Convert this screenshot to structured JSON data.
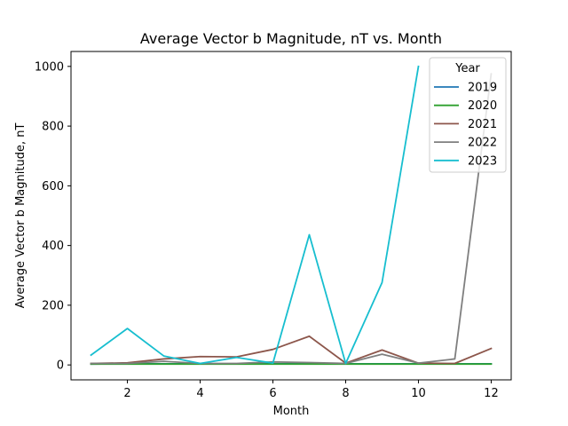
{
  "chart_data": {
    "type": "line",
    "title": "Average Vector b Magnitude, nT vs. Month",
    "xlabel": "Month",
    "ylabel": "Average Vector b Magnitude, nT",
    "xlim": [
      0.45,
      12.55
    ],
    "ylim": [
      -50,
      1050
    ],
    "xticks": [
      2,
      4,
      6,
      8,
      10,
      12
    ],
    "yticks": [
      0,
      200,
      400,
      600,
      800,
      1000
    ],
    "grid": false,
    "legend": {
      "title": "Year",
      "position": "top-right"
    },
    "series": [
      {
        "name": "2019",
        "color": "#1f77b4",
        "x": [
          1,
          2,
          3,
          4,
          5,
          6,
          7,
          8,
          9,
          10,
          11,
          12
        ],
        "y": [
          3,
          4,
          4,
          4,
          4,
          4,
          4,
          4,
          4,
          4,
          4,
          4
        ]
      },
      {
        "name": "2020",
        "color": "#2ca02c",
        "x": [
          1,
          2,
          3,
          4,
          5,
          6,
          7,
          8,
          9,
          10,
          11,
          12
        ],
        "y": [
          3,
          3,
          3,
          3,
          3,
          3,
          3,
          3,
          3,
          3,
          3,
          3
        ]
      },
      {
        "name": "2021",
        "color": "#8c564b",
        "x": [
          1,
          2,
          3,
          4,
          5,
          6,
          7,
          8,
          9,
          10,
          11,
          12
        ],
        "y": [
          5,
          7,
          20,
          28,
          27,
          52,
          96,
          6,
          50,
          6,
          5,
          55
        ]
      },
      {
        "name": "2022",
        "color": "#7f7f7f",
        "x": [
          1,
          2,
          3,
          4,
          5,
          6,
          7,
          8,
          9,
          10,
          11,
          12
        ],
        "y": [
          5,
          5,
          12,
          5,
          5,
          10,
          8,
          5,
          36,
          6,
          20,
          975
        ]
      },
      {
        "name": "2023",
        "color": "#17becf",
        "x": [
          1,
          2,
          3,
          4,
          5,
          6,
          7,
          8,
          9,
          10
        ],
        "y": [
          33,
          122,
          30,
          5,
          25,
          6,
          436,
          5,
          276,
          1000
        ]
      }
    ]
  }
}
